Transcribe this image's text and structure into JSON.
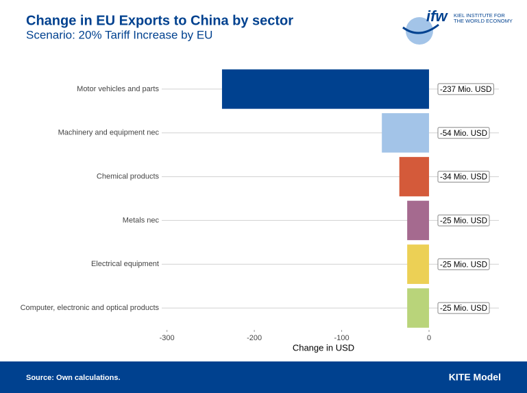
{
  "header": {
    "title": "Change in EU Exports to China by sector",
    "subtitle": "Scenario: 20% Tariff Increase by EU"
  },
  "logo": {
    "name": "ifw",
    "line1": "KIEL INSTITUTE FOR",
    "line2": "THE WORLD ECONOMY"
  },
  "chart_data": {
    "type": "hbar",
    "categories": [
      "Motor vehicles and parts",
      "Machinery and equipment nec",
      "Chemical products",
      "Metals nec",
      "Electrical equipment",
      "Computer, electronic and optical products"
    ],
    "values": [
      -237,
      -54,
      -34,
      -25,
      -25,
      -25
    ],
    "value_labels": [
      "-237 Mio. USD",
      "-54 Mio. USD",
      "-34 Mio. USD",
      "-25 Mio. USD",
      "-25 Mio. USD",
      "-25 Mio. USD"
    ],
    "colors": [
      "#00418f",
      "#a3c4e8",
      "#d45a3a",
      "#a56a8f",
      "#ecd055",
      "#b9d47a"
    ],
    "xlim": [
      -306,
      80
    ],
    "xticks": [
      -300,
      -200,
      -100,
      0
    ],
    "xlabel": "Change in USD",
    "grid": true
  },
  "footer": {
    "source": "Source: Own calculations.",
    "model": "KITE Model"
  }
}
